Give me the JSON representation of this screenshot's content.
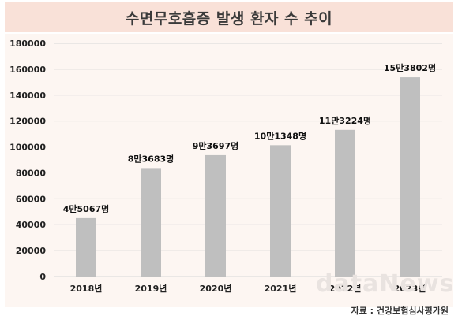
{
  "chart_data": {
    "type": "bar",
    "title": "수면무호흡증 발생 환자 수 추이",
    "categories": [
      "2018년",
      "2019년",
      "2020년",
      "2021년",
      "2022년",
      "2023년"
    ],
    "values": [
      45067,
      83683,
      93697,
      101348,
      113224,
      153802
    ],
    "data_labels": [
      "4만5067명",
      "8만3683명",
      "9만3697명",
      "10만1348명",
      "11만3224명",
      "15만3802명"
    ],
    "yticks": [
      "0",
      "20000",
      "40000",
      "60000",
      "80000",
      "100000",
      "120000",
      "140000",
      "160000",
      "180000"
    ],
    "ylim": [
      0,
      180000
    ],
    "grid": true,
    "legend": "none",
    "bar_color": "#bfbfbf",
    "grid_color": "#d8d8d8"
  },
  "source": "자료 : 건강보험심사평가원",
  "watermark": "dataNews"
}
